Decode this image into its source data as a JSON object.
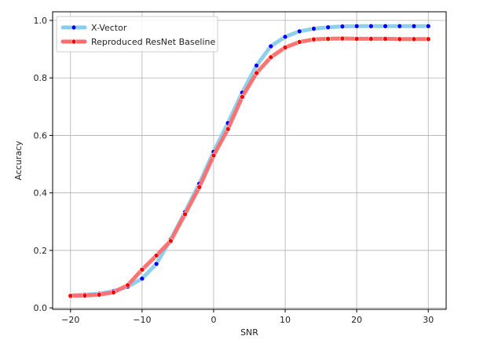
{
  "chart_data": {
    "type": "line",
    "xlabel": "SNR",
    "ylabel": "Accuracy",
    "xlim": [
      -22.5,
      32.5
    ],
    "ylim": [
      -0.005,
      1.03
    ],
    "xticks": [
      -20,
      -10,
      0,
      10,
      20,
      30
    ],
    "yticks": [
      0.0,
      0.2,
      0.4,
      0.6,
      0.8,
      1.0
    ],
    "xtick_labels": [
      "−20",
      "−10",
      "0",
      "10",
      "20",
      "30"
    ],
    "ytick_labels": [
      "0.0",
      "0.2",
      "0.4",
      "0.6",
      "0.8",
      "1.0"
    ],
    "grid": true,
    "legend_position": "upper-left",
    "x": [
      -20,
      -18,
      -16,
      -14,
      -12,
      -10,
      -8,
      -6,
      -4,
      -2,
      0,
      2,
      4,
      6,
      8,
      10,
      12,
      14,
      16,
      18,
      20,
      22,
      24,
      26,
      28,
      30
    ],
    "series": [
      {
        "name": "X-Vector",
        "line_color": "#87ceeb",
        "marker_color": "#0000ff",
        "values": [
          0.043,
          0.046,
          0.049,
          0.058,
          0.074,
          0.102,
          0.153,
          0.238,
          0.333,
          0.432,
          0.543,
          0.643,
          0.749,
          0.843,
          0.91,
          0.943,
          0.962,
          0.971,
          0.976,
          0.979,
          0.98,
          0.98,
          0.98,
          0.98,
          0.98,
          0.98
        ]
      },
      {
        "name": "Reproduced ResNet Baseline",
        "line_color": "#ff6b6b",
        "marker_color": "#ff0000",
        "values": [
          0.042,
          0.043,
          0.046,
          0.054,
          0.079,
          0.133,
          0.182,
          0.233,
          0.326,
          0.42,
          0.53,
          0.622,
          0.734,
          0.817,
          0.872,
          0.906,
          0.925,
          0.934,
          0.936,
          0.937,
          0.936,
          0.936,
          0.936,
          0.935,
          0.935,
          0.935
        ]
      }
    ]
  }
}
